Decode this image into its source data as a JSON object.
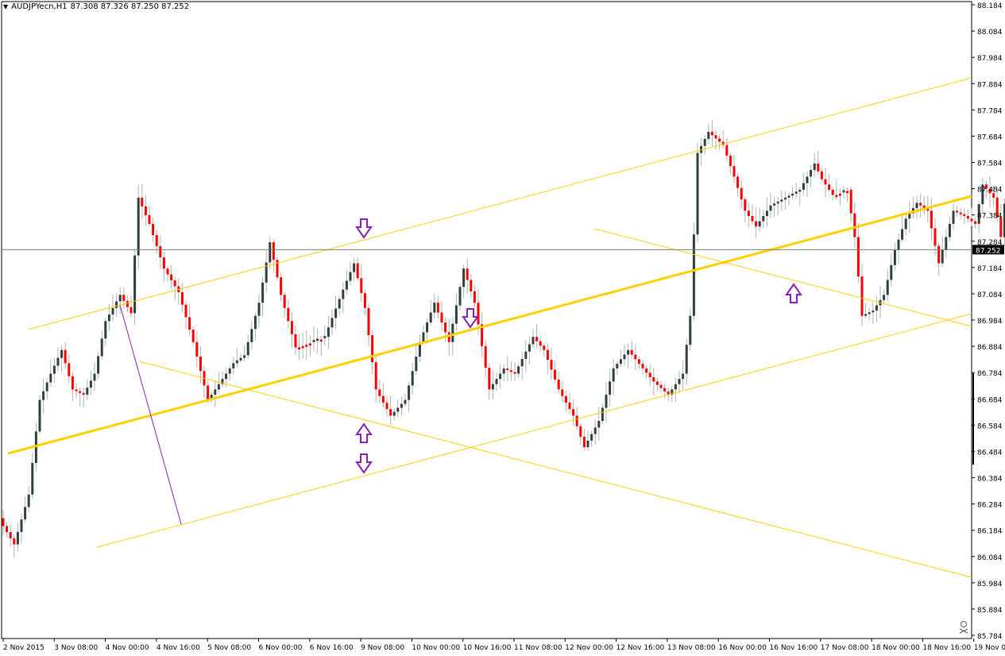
{
  "header": {
    "symbol": "AUDJPYecn,H1",
    "ohlc": "87.308 87.326 87.250 87.252"
  },
  "colors": {
    "background": "#ffffff",
    "bull": "#2f3f3f",
    "bear": "#ff0000",
    "wick": "#b0b0b0",
    "trendline": "#ffd000",
    "arrow": "#8a1fb0",
    "price_line": "#708070",
    "axis": "#000000"
  },
  "icons": [
    "down-arrow-icon",
    "up-arrow-icon",
    "skull-icon"
  ],
  "chart_data": {
    "type": "candlestick",
    "timeframe": "H1",
    "current_price": "87.252",
    "ylim": [
      85.784,
      88.184
    ],
    "y_ticks": [
      "88.184",
      "88.084",
      "87.984",
      "87.884",
      "87.784",
      "87.684",
      "87.584",
      "87.484",
      "87.384",
      "87.284",
      "87.184",
      "87.084",
      "86.984",
      "86.884",
      "86.784",
      "86.684",
      "86.584",
      "86.484",
      "86.384",
      "86.284",
      "86.184",
      "86.084",
      "85.984",
      "85.884",
      "85.784"
    ],
    "x_ticks": [
      "2 Nov 2015",
      "3 Nov 08:00",
      "4 Nov 00:00",
      "4 Nov 16:00",
      "5 Nov 08:00",
      "6 Nov 00:00",
      "6 Nov 16:00",
      "9 Nov 08:00",
      "10 Nov 00:00",
      "10 Nov 16:00",
      "11 Nov 08:00",
      "12 Nov 00:00",
      "12 Nov 16:00",
      "13 Nov 08:00",
      "16 Nov 00:00",
      "16 Nov 16:00",
      "17 Nov 08:00",
      "18 Nov 00:00",
      "18 Nov 16:00",
      "19 Nov 08:"
    ],
    "bar_spacing": 4.6,
    "anchors": [
      [
        0,
        86.2
      ],
      [
        3,
        86.13
      ],
      [
        7,
        86.32
      ],
      [
        10,
        86.68
      ],
      [
        13,
        86.78
      ],
      [
        16,
        86.87
      ],
      [
        19,
        86.72
      ],
      [
        22,
        86.7
      ],
      [
        25,
        86.78
      ],
      [
        28,
        86.98
      ],
      [
        32,
        87.08
      ],
      [
        35,
        87.01
      ],
      [
        37,
        87.45
      ],
      [
        40,
        87.35
      ],
      [
        44,
        87.18
      ],
      [
        48,
        87.09
      ],
      [
        52,
        86.9
      ],
      [
        56,
        86.68
      ],
      [
        60,
        86.76
      ],
      [
        63,
        86.82
      ],
      [
        66,
        86.85
      ],
      [
        70,
        87.05
      ],
      [
        73,
        87.28
      ],
      [
        76,
        87.08
      ],
      [
        80,
        86.88
      ],
      [
        84,
        86.9
      ],
      [
        88,
        86.92
      ],
      [
        93,
        87.1
      ],
      [
        96,
        87.2
      ],
      [
        99,
        87.03
      ],
      [
        102,
        86.72
      ],
      [
        106,
        86.62
      ],
      [
        110,
        86.68
      ],
      [
        114,
        86.9
      ],
      [
        118,
        87.05
      ],
      [
        122,
        86.9
      ],
      [
        126,
        87.18
      ],
      [
        129,
        87.05
      ],
      [
        133,
        86.72
      ],
      [
        137,
        86.8
      ],
      [
        140,
        86.78
      ],
      [
        145,
        86.92
      ],
      [
        148,
        86.87
      ],
      [
        152,
        86.72
      ],
      [
        156,
        86.62
      ],
      [
        159,
        86.5
      ],
      [
        163,
        86.6
      ],
      [
        167,
        86.8
      ],
      [
        171,
        86.87
      ],
      [
        175,
        86.8
      ],
      [
        178,
        86.75
      ],
      [
        182,
        86.7
      ],
      [
        186,
        86.78
      ],
      [
        188,
        87.0
      ],
      [
        190,
        87.62
      ],
      [
        193,
        87.7
      ],
      [
        197,
        87.65
      ],
      [
        200,
        87.53
      ],
      [
        203,
        87.4
      ],
      [
        206,
        87.34
      ],
      [
        210,
        87.42
      ],
      [
        214,
        87.45
      ],
      [
        218,
        87.48
      ],
      [
        222,
        87.58
      ],
      [
        224,
        87.52
      ],
      [
        227,
        87.46
      ],
      [
        231,
        87.48
      ],
      [
        233,
        87.3
      ],
      [
        235,
        87.0
      ],
      [
        238,
        87.02
      ],
      [
        241,
        87.08
      ],
      [
        244,
        87.25
      ],
      [
        247,
        87.37
      ],
      [
        250,
        87.43
      ],
      [
        253,
        87.4
      ],
      [
        256,
        87.2
      ],
      [
        260,
        87.4
      ],
      [
        263,
        87.38
      ],
      [
        266,
        87.35
      ],
      [
        268,
        87.5
      ],
      [
        271,
        87.45
      ],
      [
        273,
        87.3
      ],
      [
        276,
        87.68
      ],
      [
        279,
        87.85
      ],
      [
        282,
        87.8
      ],
      [
        285,
        87.73
      ],
      [
        289,
        87.6
      ],
      [
        292,
        87.48
      ],
      [
        296,
        87.63
      ],
      [
        300,
        87.6
      ],
      [
        302,
        87.45
      ],
      [
        304,
        87.42
      ],
      [
        307,
        87.43
      ],
      [
        310,
        87.38
      ],
      [
        313,
        87.7
      ],
      [
        316,
        87.88
      ],
      [
        318,
        87.95
      ]
    ]
  }
}
